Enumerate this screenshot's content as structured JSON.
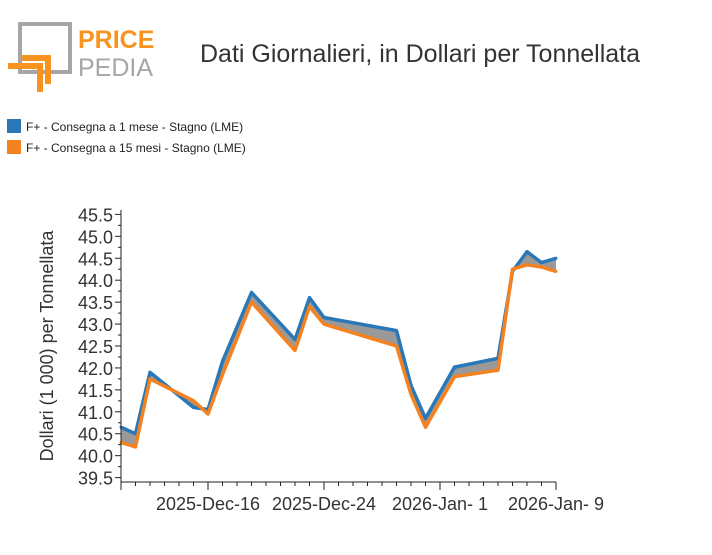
{
  "brand": {
    "word1": "PRICE",
    "word2": "PEDIA",
    "accent": "#f7931e",
    "grey": "#a6a6a6"
  },
  "header": {
    "title": "Dati Giornalieri, in Dollari per Tonnellata"
  },
  "chart_data": {
    "type": "line",
    "ylabel": "Dollari (1 000) per Tonnellata",
    "xlabel": "",
    "ylim": [
      39.4,
      45.6
    ],
    "yticks": [
      39.5,
      40.0,
      40.5,
      41.0,
      41.5,
      42.0,
      42.5,
      43.0,
      43.5,
      44.0,
      44.5,
      45.0,
      45.5
    ],
    "ytick_labels": [
      "39.5",
      "40.0",
      "40.5",
      "41.0",
      "41.5",
      "42.0",
      "42.5",
      "43.0",
      "43.5",
      "44.0",
      "44.5",
      "45.0",
      "45.5"
    ],
    "xlim": [
      "2025-12-10",
      "2026-01-09"
    ],
    "xticks": [
      "2025-12-16",
      "2025-12-24",
      "2026-01-01",
      "2026-01-09"
    ],
    "xtick_labels": [
      "2025-Dec-16",
      "2025-Dec-24",
      "2026-Jan- 1",
      "2026-Jan- 9"
    ],
    "x": [
      "2025-12-10",
      "2025-12-11",
      "2025-12-12",
      "2025-12-15",
      "2025-12-16",
      "2025-12-17",
      "2025-12-19",
      "2025-12-22",
      "2025-12-23",
      "2025-12-24",
      "2025-12-29",
      "2025-12-30",
      "2025-12-31",
      "2026-01-02",
      "2026-01-05",
      "2026-01-06",
      "2026-01-07",
      "2026-01-08",
      "2026-01-09"
    ],
    "series": [
      {
        "name": "F+ - Consegna a 1 mese - Stagno (LME)",
        "color": "#2a78b8",
        "values": [
          40.65,
          40.5,
          41.9,
          41.1,
          41.05,
          42.15,
          43.72,
          42.65,
          43.6,
          43.15,
          42.85,
          41.6,
          40.85,
          42.02,
          42.22,
          44.2,
          44.65,
          44.4,
          44.5
        ]
      },
      {
        "name": "F+ - Consegna a 15 mesi - Stagno (LME)",
        "color": "#f58220",
        "values": [
          40.3,
          40.2,
          41.75,
          41.25,
          40.95,
          41.85,
          43.5,
          42.4,
          43.4,
          43.0,
          42.5,
          41.4,
          40.65,
          41.8,
          41.95,
          44.25,
          44.35,
          44.3,
          44.2
        ]
      }
    ],
    "fill_between_color": "#999999",
    "legend_position": "top-left"
  }
}
